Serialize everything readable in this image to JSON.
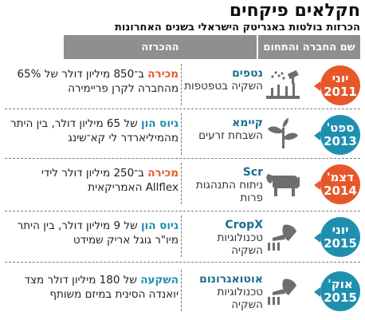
{
  "title": "חקלאים פיקחים",
  "subtitle": "הכרזות בולטות באגריטק הישראלי בשנים האחרונות",
  "header": {
    "company_col": "שם החברה והתחום",
    "declaration_col": "ההכרזה"
  },
  "colors": {
    "orange": "#e8572a",
    "teal": "#1f8fb0",
    "tag_orange": "#e8572a",
    "tag_teal": "#1f8fb0"
  },
  "rows": [
    {
      "month": "יוני",
      "year": "2011",
      "company": "נטפים",
      "field": "השקיה בטפטפות",
      "tag": "מכירה",
      "decl_text": "ב־850 מיליון דולר של 65% מהחברה לקרן פריימירה",
      "icon": "drip-irrigation-icon"
    },
    {
      "month": "ספט'",
      "year": "2013",
      "company": "קיימא",
      "field": "השבחת זרעים",
      "tag": "גיוס הון",
      "decl_text": "של 65 מיליון דולר, בין היתר מהמיליארדר לי קא־שינג",
      "icon": "seedling-icon"
    },
    {
      "month": "דצמ'",
      "year": "2014",
      "company": "Scr",
      "field": "ניתוח התנהגות פרות",
      "tag": "מכירה",
      "decl_text": "ב־250 מיליון דולר לידי Allflex האמריקאית",
      "icon": "cow-icon"
    },
    {
      "month": "יוני",
      "year": "2015",
      "company": "CropX",
      "field": "טכנולוגיות השקיה",
      "tag": "גיוס הון",
      "decl_text": "של 9 מיליון דולר, בין היתר מיו\"ר גוגל אריק שמידט",
      "icon": "watering-can-icon"
    },
    {
      "month": "אוק'",
      "year": "2015",
      "company": "אוטואגרונום",
      "field": "טכנולוגיות השקיה",
      "tag": "השקעה",
      "decl_text": "של 180 מיליון דולר מצד יואנדה הסינית במיזם משותף",
      "icon": "watering-can-icon"
    }
  ]
}
